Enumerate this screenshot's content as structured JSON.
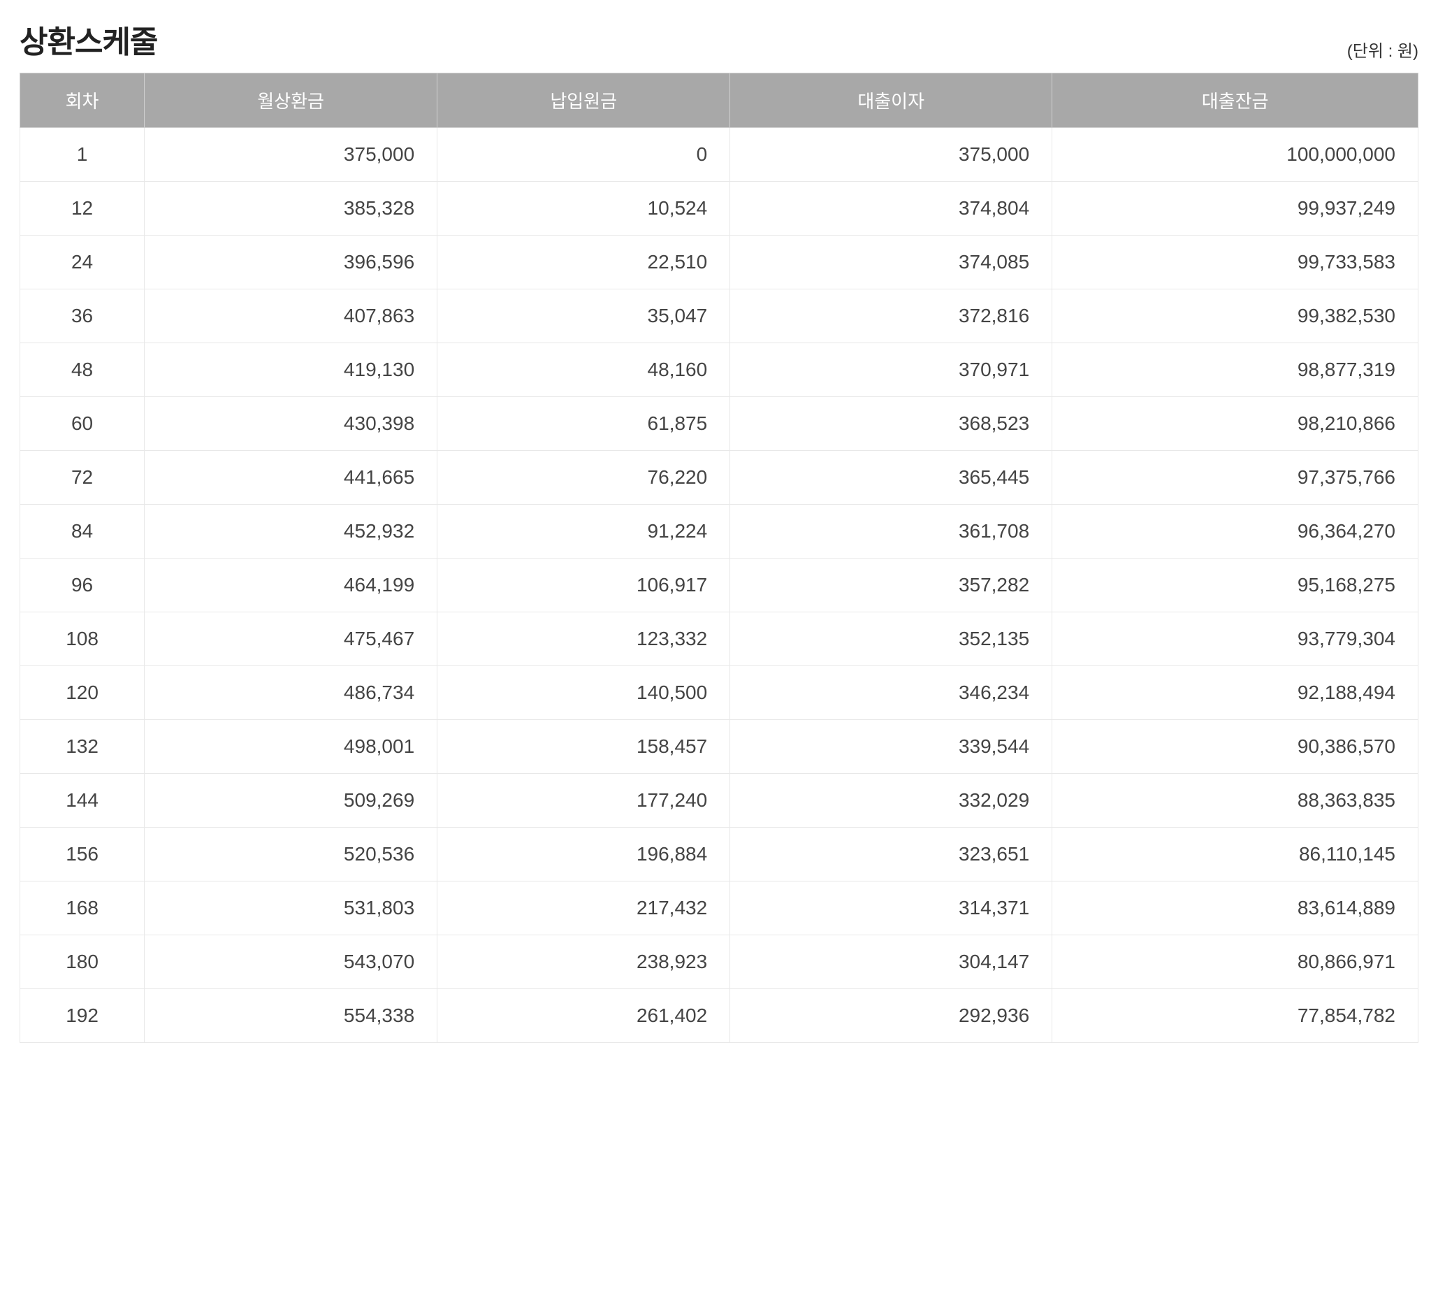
{
  "title": "상환스케줄",
  "unit_label": "(단위 : 원)",
  "table": {
    "columns": [
      "회차",
      "월상환금",
      "납입원금",
      "대출이자",
      "대출잔금"
    ],
    "column_align": [
      "center",
      "right",
      "right",
      "right",
      "right"
    ],
    "header_bg": "#a8a8a8",
    "header_fg": "#ffffff",
    "border_color": "#e8e8e8",
    "body_fg": "#444444",
    "font_size_header": 26,
    "font_size_body": 28,
    "rows": [
      [
        "1",
        "375,000",
        "0",
        "375,000",
        "100,000,000"
      ],
      [
        "12",
        "385,328",
        "10,524",
        "374,804",
        "99,937,249"
      ],
      [
        "24",
        "396,596",
        "22,510",
        "374,085",
        "99,733,583"
      ],
      [
        "36",
        "407,863",
        "35,047",
        "372,816",
        "99,382,530"
      ],
      [
        "48",
        "419,130",
        "48,160",
        "370,971",
        "98,877,319"
      ],
      [
        "60",
        "430,398",
        "61,875",
        "368,523",
        "98,210,866"
      ],
      [
        "72",
        "441,665",
        "76,220",
        "365,445",
        "97,375,766"
      ],
      [
        "84",
        "452,932",
        "91,224",
        "361,708",
        "96,364,270"
      ],
      [
        "96",
        "464,199",
        "106,917",
        "357,282",
        "95,168,275"
      ],
      [
        "108",
        "475,467",
        "123,332",
        "352,135",
        "93,779,304"
      ],
      [
        "120",
        "486,734",
        "140,500",
        "346,234",
        "92,188,494"
      ],
      [
        "132",
        "498,001",
        "158,457",
        "339,544",
        "90,386,570"
      ],
      [
        "144",
        "509,269",
        "177,240",
        "332,029",
        "88,363,835"
      ],
      [
        "156",
        "520,536",
        "196,884",
        "323,651",
        "86,110,145"
      ],
      [
        "168",
        "531,803",
        "217,432",
        "314,371",
        "83,614,889"
      ],
      [
        "180",
        "543,070",
        "238,923",
        "304,147",
        "80,866,971"
      ],
      [
        "192",
        "554,338",
        "261,402",
        "292,936",
        "77,854,782"
      ]
    ]
  }
}
